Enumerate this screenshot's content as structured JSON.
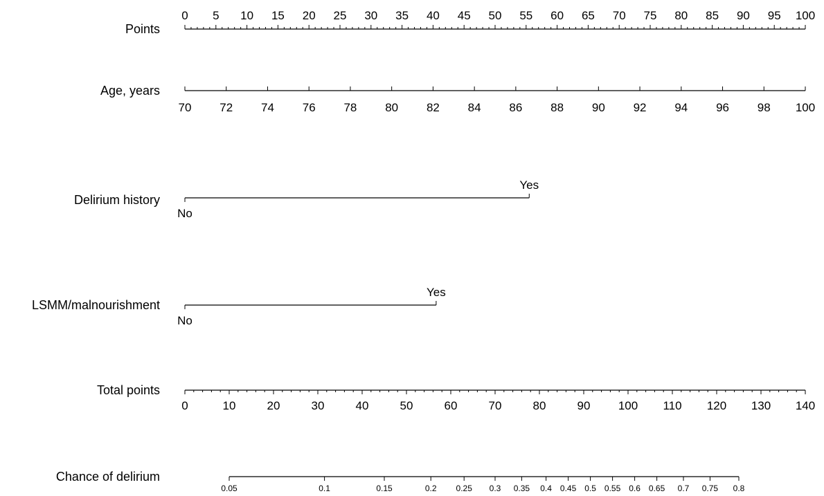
{
  "chart_data": {
    "type": "nomogram",
    "title": "",
    "rows": [
      {
        "key": "points",
        "label": "Points",
        "kind": "scale",
        "min": 0,
        "max": 100,
        "major": [
          0,
          5,
          10,
          15,
          20,
          25,
          30,
          35,
          40,
          45,
          50,
          55,
          60,
          65,
          70,
          75,
          80,
          85,
          90,
          95,
          100
        ],
        "minor_step": 1,
        "labels_side": "above"
      },
      {
        "key": "age",
        "label": "Age, years",
        "kind": "variable",
        "ticks": [
          {
            "value": 70,
            "points": 0
          },
          {
            "value": 72,
            "points": 6.667
          },
          {
            "value": 74,
            "points": 13.333
          },
          {
            "value": 76,
            "points": 20
          },
          {
            "value": 78,
            "points": 26.667
          },
          {
            "value": 80,
            "points": 33.333
          },
          {
            "value": 82,
            "points": 40
          },
          {
            "value": 84,
            "points": 46.667
          },
          {
            "value": 86,
            "points": 53.333
          },
          {
            "value": 88,
            "points": 60
          },
          {
            "value": 90,
            "points": 66.667
          },
          {
            "value": 92,
            "points": 73.333
          },
          {
            "value": 94,
            "points": 80
          },
          {
            "value": 96,
            "points": 86.667
          },
          {
            "value": 98,
            "points": 93.333
          },
          {
            "value": 100,
            "points": 100
          }
        ],
        "labels_side": "below"
      },
      {
        "key": "delirium_history",
        "label": "Delirium history",
        "kind": "categorical",
        "levels": [
          {
            "value": "No",
            "points": 0,
            "side": "below"
          },
          {
            "value": "Yes",
            "points": 55.5,
            "side": "above"
          }
        ]
      },
      {
        "key": "lsmm",
        "label": "LSMM/malnourishment",
        "kind": "categorical",
        "levels": [
          {
            "value": "No",
            "points": 0,
            "side": "below"
          },
          {
            "value": "Yes",
            "points": 40.5,
            "side": "above"
          }
        ]
      },
      {
        "key": "total_points",
        "label": "Total points",
        "kind": "scale",
        "min": 0,
        "max": 140,
        "major": [
          0,
          10,
          20,
          30,
          40,
          50,
          60,
          70,
          80,
          90,
          100,
          110,
          120,
          130,
          140
        ],
        "minor_step": 2,
        "labels_side": "below"
      },
      {
        "key": "chance",
        "label": "Chance of delirium",
        "kind": "probability",
        "ticks": [
          {
            "value": "0.05",
            "total_points": 10
          },
          {
            "value": "0.1",
            "total_points": 31.5
          },
          {
            "value": "0.15",
            "total_points": 45
          },
          {
            "value": "0.2",
            "total_points": 55.5
          },
          {
            "value": "0.25",
            "total_points": 63
          },
          {
            "value": "0.3",
            "total_points": 70
          },
          {
            "value": "0.35",
            "total_points": 76
          },
          {
            "value": "0.4",
            "total_points": 81.5
          },
          {
            "value": "0.45",
            "total_points": 86.5
          },
          {
            "value": "0.5",
            "total_points": 91.5
          },
          {
            "value": "0.55",
            "total_points": 96.5
          },
          {
            "value": "0.6",
            "total_points": 101.5
          },
          {
            "value": "0.65",
            "total_points": 106.5
          },
          {
            "value": "0.7",
            "total_points": 112.5
          },
          {
            "value": "0.75",
            "total_points": 118.5
          },
          {
            "value": "0.8",
            "total_points": 125
          }
        ],
        "labels_side": "below"
      }
    ]
  }
}
